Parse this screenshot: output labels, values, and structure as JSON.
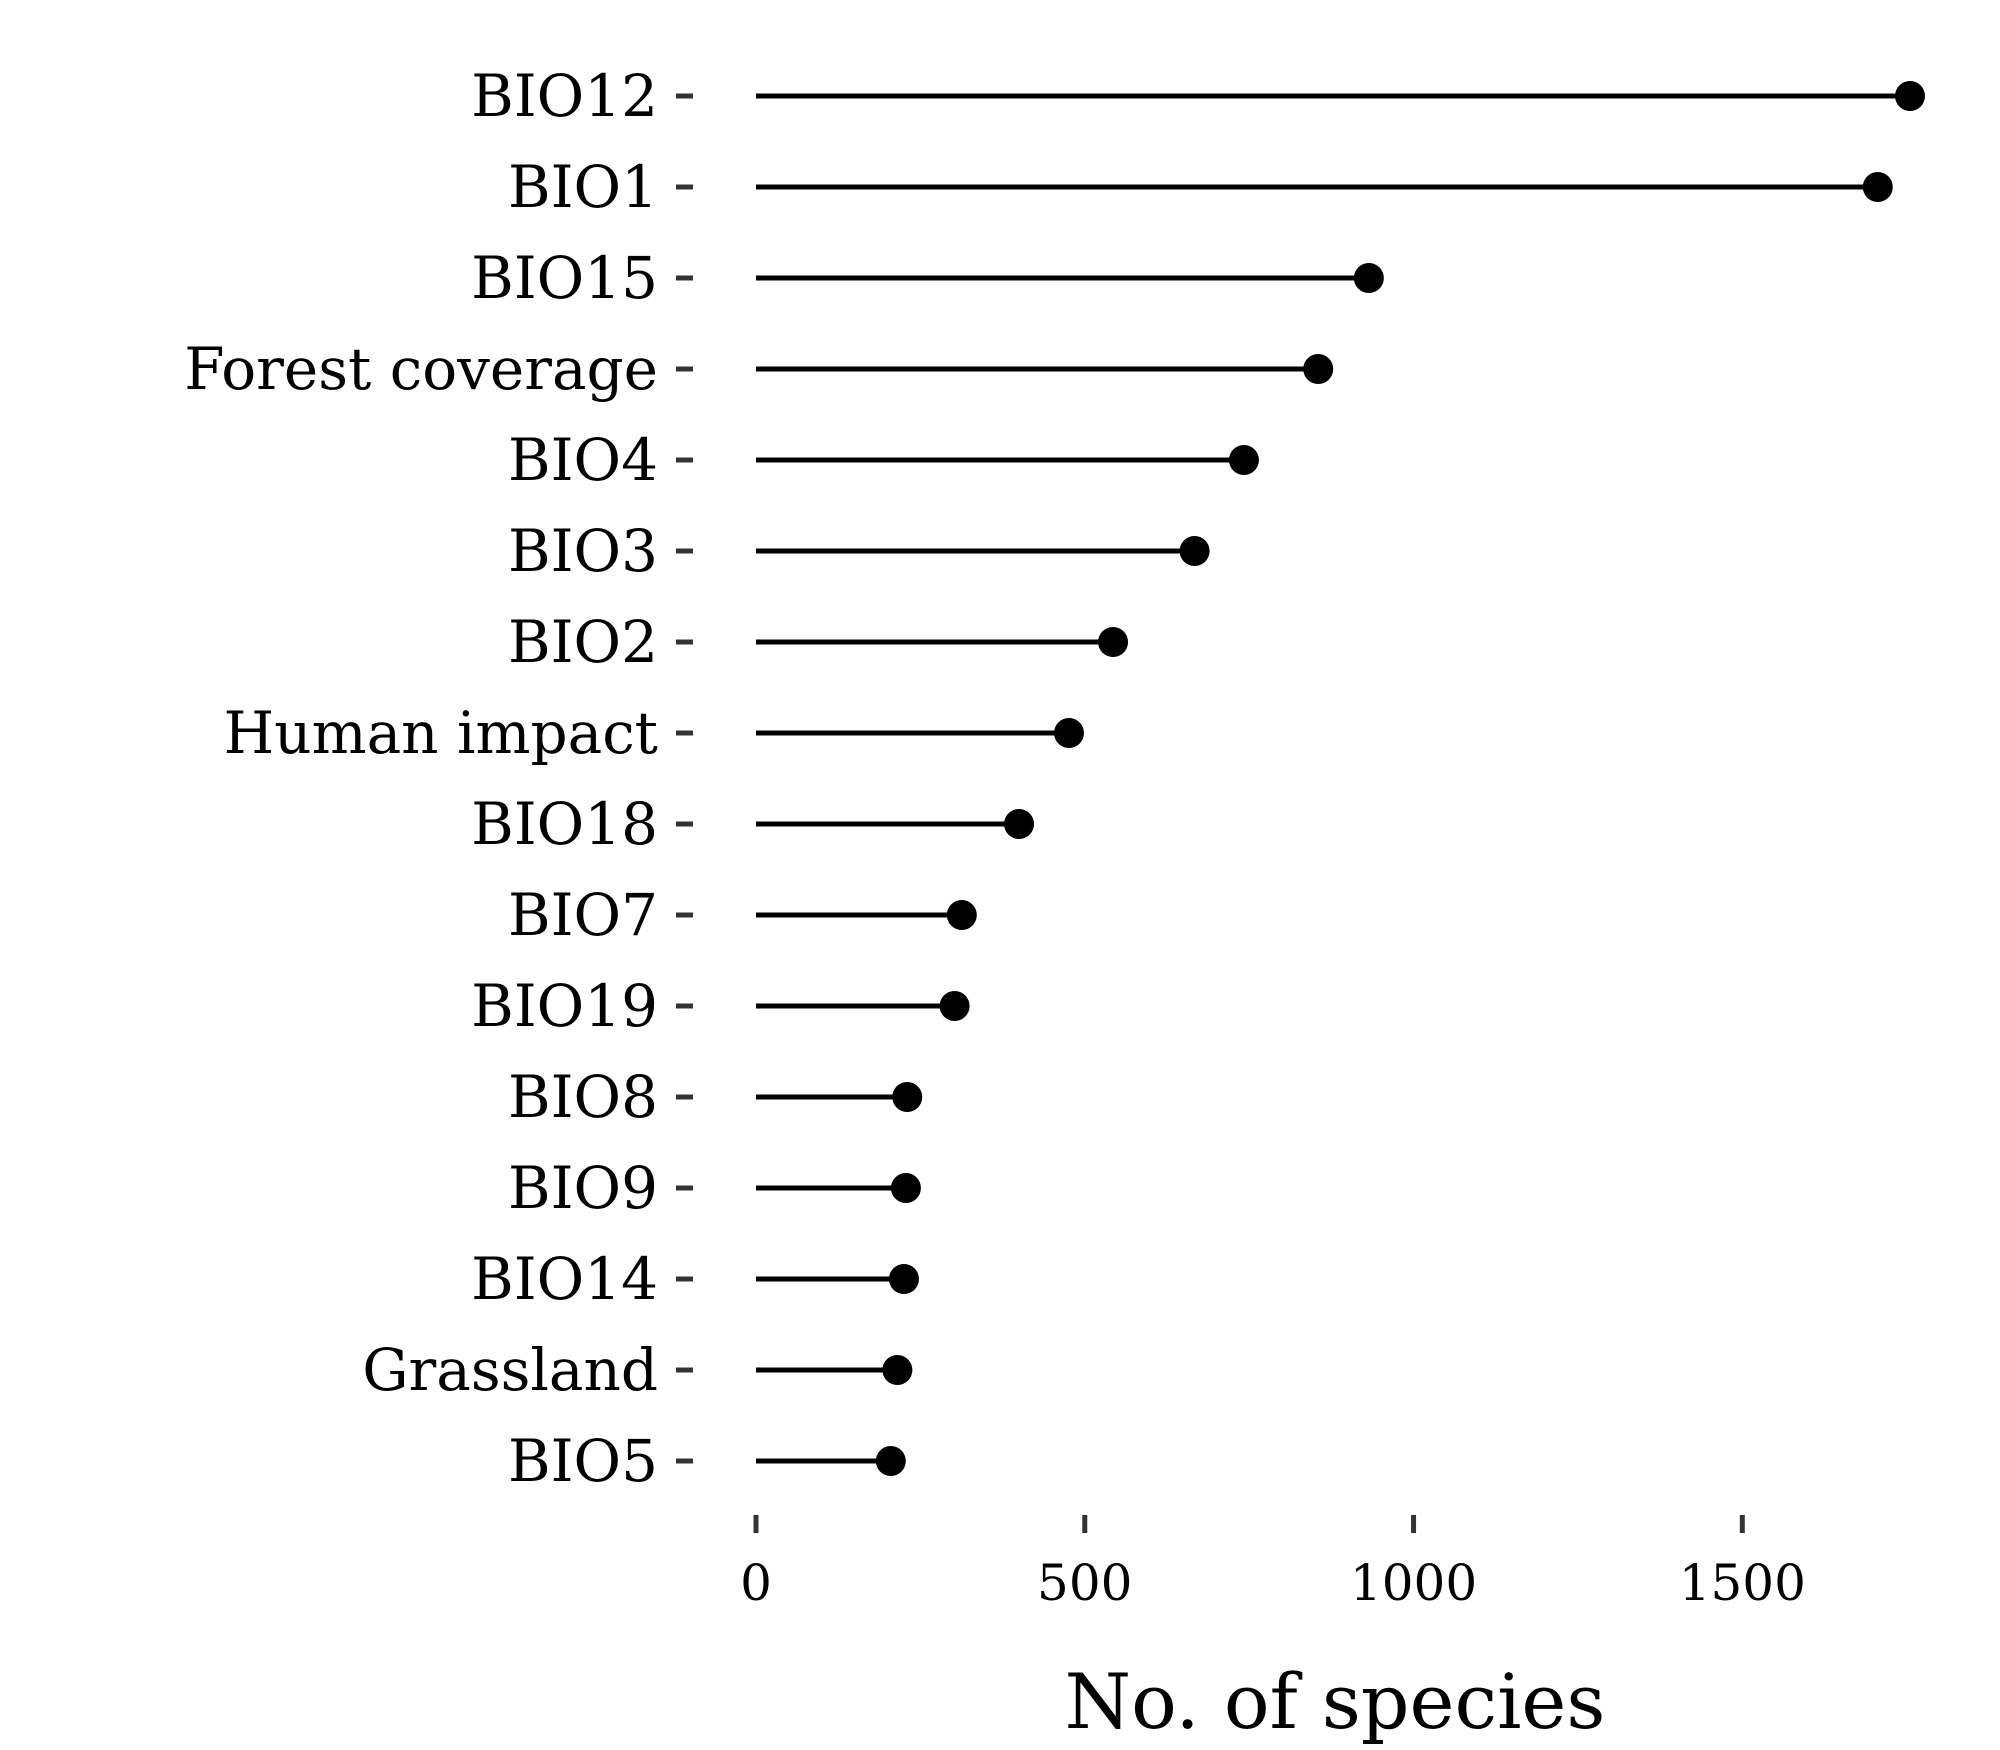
{
  "chart_data": {
    "type": "lollipop",
    "orientation": "horizontal",
    "categories": [
      "BIO12",
      "BIO1",
      "BIO15",
      "Forest coverage",
      "BIO4",
      "BIO3",
      "BIO2",
      "Human impact",
      "BIO18",
      "BIO7",
      "BIO19",
      "BIO8",
      "BIO9",
      "BIO14",
      "Grassland",
      "BIO5"
    ],
    "values": [
      1755,
      1706,
      932,
      855,
      742,
      667,
      543,
      476,
      400,
      313,
      302,
      230,
      228,
      225,
      215,
      205
    ],
    "xlabel": "No. of species",
    "ylabel": "",
    "title": "",
    "xlim": [
      0,
      1755
    ],
    "xticks": [
      "0",
      "500",
      "1000",
      "1500"
    ],
    "xtick_values": [
      0,
      500,
      1000,
      1500
    ],
    "grid": false,
    "legend": "none",
    "colors": {
      "line": "#000000",
      "point": "#000000",
      "tick": "#333333",
      "background": "#ffffff"
    }
  }
}
